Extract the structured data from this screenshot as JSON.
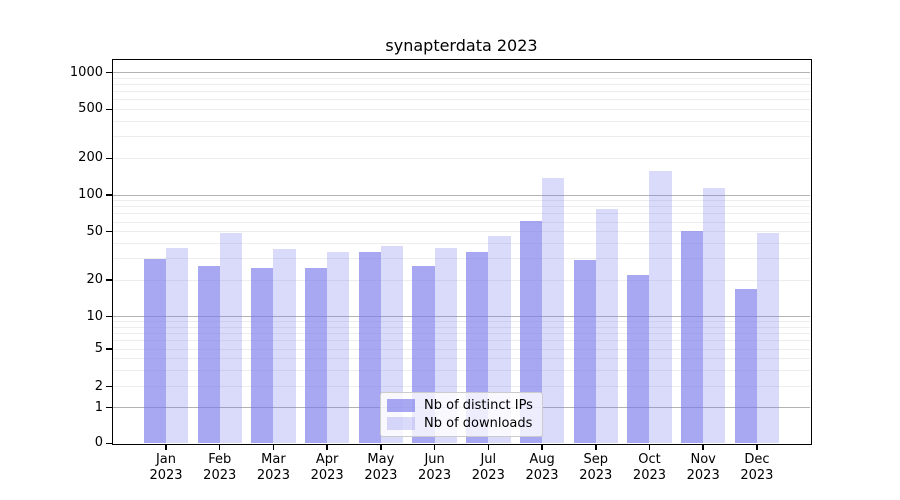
{
  "title": "synapterdata 2023",
  "chart_data": {
    "type": "bar",
    "title": "synapterdata 2023",
    "categories": [
      "Jan 2023",
      "Feb 2023",
      "Mar 2023",
      "Apr 2023",
      "May 2023",
      "Jun 2023",
      "Jul 2023",
      "Aug 2023",
      "Sep 2023",
      "Oct 2023",
      "Nov 2023",
      "Dec 2023"
    ],
    "series": [
      {
        "name": "Nb of distinct IPs",
        "key": "distinct-ips",
        "base_color": "#7878eb",
        "alpha": 0.65,
        "rendered_color": "#a8a8f5",
        "values": [
          30,
          26,
          25,
          25,
          34,
          26,
          34,
          61,
          29,
          22,
          51,
          17
        ]
      },
      {
        "name": "Nb of downloads",
        "key": "downloads",
        "base_color": "#7878eb",
        "alpha": 0.27,
        "rendered_color": "#d9d9f7",
        "values": [
          37,
          49,
          36,
          34,
          38,
          37,
          46,
          137,
          77,
          158,
          115,
          49
        ]
      }
    ],
    "xlabel": "",
    "ylabel": "",
    "y_axis": {
      "scale": "symlog",
      "tick_labels": [
        1000,
        500,
        200,
        100,
        50,
        20,
        10,
        5,
        2,
        1,
        0
      ],
      "ylim": [
        0,
        1280
      ]
    },
    "grid": true,
    "legend": {
      "position": "lower center",
      "entries": [
        "Nb of distinct IPs",
        "Nb of downloads"
      ]
    }
  }
}
